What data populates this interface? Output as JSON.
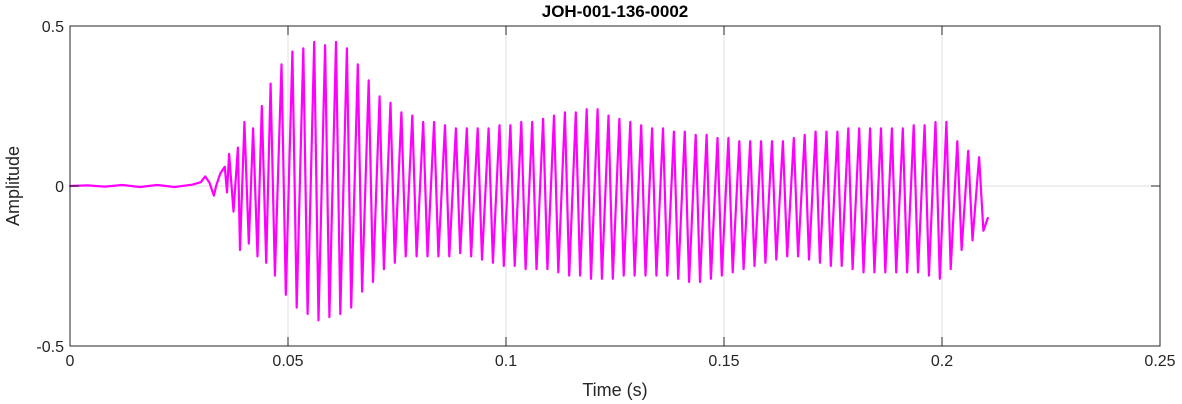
{
  "chart_data": {
    "type": "line",
    "title": "JOH-001-136-0002",
    "xlabel": "Time (s)",
    "ylabel": "Amplitude",
    "xlim": [
      0,
      0.25
    ],
    "ylim": [
      -0.5,
      0.5
    ],
    "x_ticks": [
      0,
      0.05,
      0.1,
      0.15,
      0.2,
      0.25
    ],
    "x_tick_labels": [
      "0",
      "0.05",
      "0.1",
      "0.15",
      "0.2",
      "0.25"
    ],
    "y_ticks": [
      -0.5,
      0,
      0.5
    ],
    "y_tick_labels": [
      "-0.5",
      "0",
      "0.5"
    ],
    "grid": true,
    "colors": {
      "series": "#ff00ff",
      "grid": "#dfdfdf",
      "axes": "#262626"
    },
    "series": [
      {
        "signal_end": 0.2105,
        "points": [
          [
            0,
            0
          ],
          [
            0.004,
            0.002
          ],
          [
            0.008,
            -0.002
          ],
          [
            0.012,
            0.003
          ],
          [
            0.016,
            -0.003
          ],
          [
            0.02,
            0.003
          ],
          [
            0.024,
            -0.003
          ],
          [
            0.028,
            0.004
          ],
          [
            0.03,
            0.012
          ],
          [
            0.031,
            0.03
          ],
          [
            0.032,
            0.01
          ],
          [
            0.033,
            -0.03
          ],
          [
            0.0335,
            0.0
          ],
          [
            0.0345,
            0.04
          ],
          [
            0.0355,
            0.06
          ],
          [
            0.036,
            -0.02
          ],
          [
            0.0365,
            0.1
          ],
          [
            0.0375,
            -0.08
          ],
          [
            0.0385,
            0.12
          ],
          [
            0.039,
            -0.2
          ],
          [
            0.04,
            0.2
          ],
          [
            0.041,
            -0.18
          ],
          [
            0.042,
            0.18
          ],
          [
            0.043,
            -0.22
          ],
          [
            0.044,
            0.25
          ],
          [
            0.045,
            -0.24
          ],
          [
            0.046,
            0.32
          ],
          [
            0.047,
            -0.28
          ],
          [
            0.0485,
            0.38
          ],
          [
            0.0495,
            -0.34
          ],
          [
            0.051,
            0.42
          ],
          [
            0.052,
            -0.38
          ],
          [
            0.0535,
            0.43
          ],
          [
            0.0545,
            -0.4
          ],
          [
            0.056,
            0.45
          ],
          [
            0.057,
            -0.42
          ],
          [
            0.0585,
            0.44
          ],
          [
            0.0595,
            -0.41
          ],
          [
            0.061,
            0.45
          ],
          [
            0.062,
            -0.4
          ],
          [
            0.0635,
            0.43
          ],
          [
            0.0645,
            -0.38
          ],
          [
            0.066,
            0.38
          ],
          [
            0.067,
            -0.33
          ],
          [
            0.0685,
            0.33
          ],
          [
            0.0695,
            -0.3
          ],
          [
            0.071,
            0.28
          ],
          [
            0.072,
            -0.26
          ],
          [
            0.0735,
            0.26
          ],
          [
            0.0745,
            -0.24
          ],
          [
            0.076,
            0.23
          ],
          [
            0.077,
            -0.22
          ],
          [
            0.0785,
            0.22
          ],
          [
            0.0795,
            -0.22
          ],
          [
            0.081,
            0.2
          ],
          [
            0.082,
            -0.22
          ],
          [
            0.0835,
            0.2
          ],
          [
            0.0845,
            -0.22
          ],
          [
            0.086,
            0.19
          ],
          [
            0.087,
            -0.22
          ],
          [
            0.0885,
            0.18
          ],
          [
            0.0895,
            -0.21
          ],
          [
            0.091,
            0.18
          ],
          [
            0.092,
            -0.22
          ],
          [
            0.0935,
            0.18
          ],
          [
            0.0945,
            -0.23
          ],
          [
            0.096,
            0.18
          ],
          [
            0.097,
            -0.24
          ],
          [
            0.0985,
            0.19
          ],
          [
            0.0995,
            -0.25
          ],
          [
            0.101,
            0.19
          ],
          [
            0.102,
            -0.25
          ],
          [
            0.1035,
            0.2
          ],
          [
            0.1045,
            -0.26
          ],
          [
            0.106,
            0.2
          ],
          [
            0.107,
            -0.26
          ],
          [
            0.1085,
            0.21
          ],
          [
            0.1095,
            -0.26
          ],
          [
            0.111,
            0.22
          ],
          [
            0.112,
            -0.27
          ],
          [
            0.1135,
            0.23
          ],
          [
            0.1145,
            -0.28
          ],
          [
            0.116,
            0.23
          ],
          [
            0.117,
            -0.28
          ],
          [
            0.1185,
            0.24
          ],
          [
            0.1195,
            -0.29
          ],
          [
            0.121,
            0.24
          ],
          [
            0.122,
            -0.29
          ],
          [
            0.1235,
            0.22
          ],
          [
            0.1245,
            -0.29
          ],
          [
            0.126,
            0.21
          ],
          [
            0.127,
            -0.28
          ],
          [
            0.1285,
            0.2
          ],
          [
            0.1295,
            -0.28
          ],
          [
            0.131,
            0.19
          ],
          [
            0.132,
            -0.28
          ],
          [
            0.1335,
            0.18
          ],
          [
            0.1345,
            -0.28
          ],
          [
            0.136,
            0.18
          ],
          [
            0.137,
            -0.28
          ],
          [
            0.1385,
            0.17
          ],
          [
            0.1395,
            -0.29
          ],
          [
            0.141,
            0.17
          ],
          [
            0.142,
            -0.3
          ],
          [
            0.1435,
            0.16
          ],
          [
            0.1445,
            -0.3
          ],
          [
            0.146,
            0.16
          ],
          [
            0.147,
            -0.29
          ],
          [
            0.1485,
            0.15
          ],
          [
            0.1495,
            -0.28
          ],
          [
            0.151,
            0.15
          ],
          [
            0.152,
            -0.27
          ],
          [
            0.1535,
            0.14
          ],
          [
            0.1545,
            -0.26
          ],
          [
            0.156,
            0.14
          ],
          [
            0.157,
            -0.25
          ],
          [
            0.1585,
            0.14
          ],
          [
            0.1595,
            -0.24
          ],
          [
            0.161,
            0.14
          ],
          [
            0.162,
            -0.23
          ],
          [
            0.1635,
            0.14
          ],
          [
            0.1645,
            -0.22
          ],
          [
            0.166,
            0.15
          ],
          [
            0.167,
            -0.22
          ],
          [
            0.1685,
            0.16
          ],
          [
            0.1695,
            -0.23
          ],
          [
            0.171,
            0.17
          ],
          [
            0.172,
            -0.24
          ],
          [
            0.1735,
            0.17
          ],
          [
            0.1745,
            -0.25
          ],
          [
            0.176,
            0.17
          ],
          [
            0.177,
            -0.25
          ],
          [
            0.1785,
            0.18
          ],
          [
            0.1795,
            -0.26
          ],
          [
            0.181,
            0.18
          ],
          [
            0.182,
            -0.27
          ],
          [
            0.1835,
            0.18
          ],
          [
            0.1845,
            -0.27
          ],
          [
            0.186,
            0.18
          ],
          [
            0.187,
            -0.27
          ],
          [
            0.1885,
            0.18
          ],
          [
            0.1895,
            -0.27
          ],
          [
            0.191,
            0.18
          ],
          [
            0.192,
            -0.27
          ],
          [
            0.1935,
            0.19
          ],
          [
            0.1945,
            -0.27
          ],
          [
            0.196,
            0.19
          ],
          [
            0.197,
            -0.28
          ],
          [
            0.1985,
            0.2
          ],
          [
            0.1995,
            -0.29
          ],
          [
            0.201,
            0.2
          ],
          [
            0.202,
            -0.26
          ],
          [
            0.2035,
            0.14
          ],
          [
            0.2045,
            -0.2
          ],
          [
            0.206,
            0.11
          ],
          [
            0.207,
            -0.17
          ],
          [
            0.2085,
            0.09
          ],
          [
            0.2095,
            -0.14
          ],
          [
            0.2105,
            -0.1
          ]
        ]
      }
    ]
  }
}
